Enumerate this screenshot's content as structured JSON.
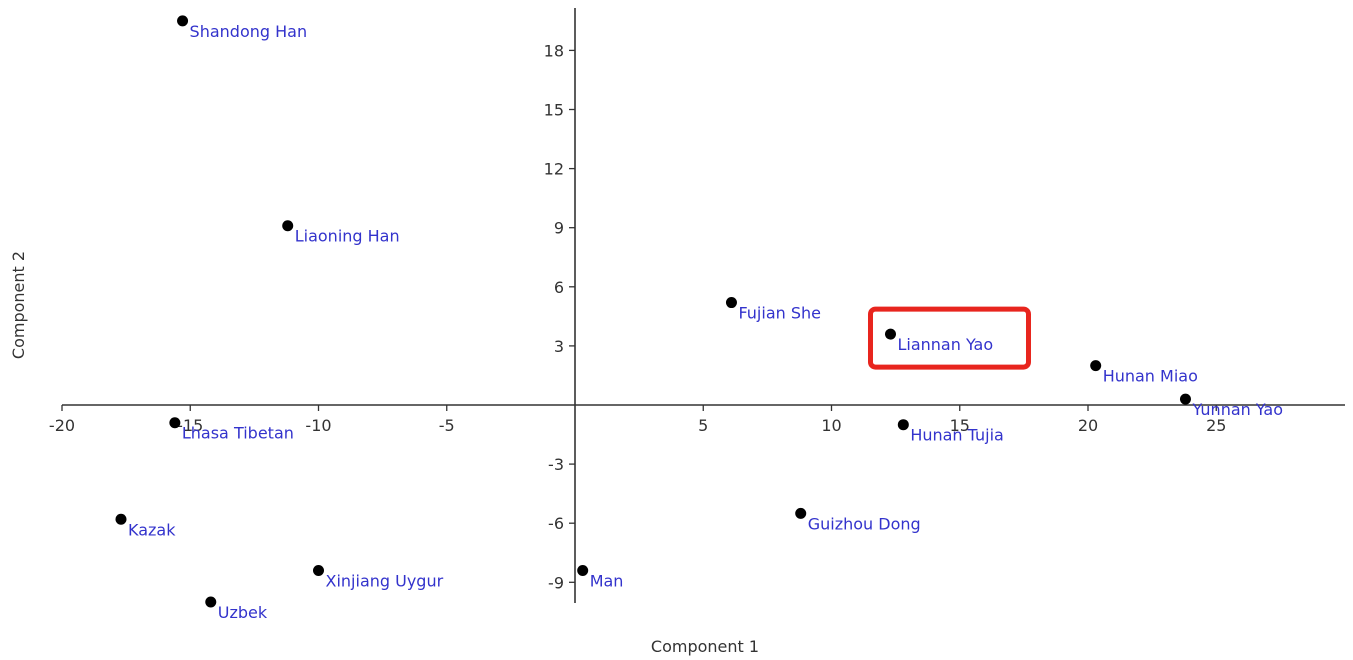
{
  "chart_data": {
    "type": "scatter",
    "xlabel": "Component 1",
    "ylabel": "Component 2",
    "xlim": [
      -20,
      30
    ],
    "ylim": [
      -10,
      20
    ],
    "x_ticks": [
      -20,
      -15,
      -10,
      -5,
      5,
      10,
      15,
      20,
      25
    ],
    "y_ticks": [
      -9,
      -6,
      -3,
      3,
      6,
      9,
      12,
      15,
      18
    ],
    "grid": false,
    "points": [
      {
        "label": "Shandong Han",
        "x": -15.3,
        "y": 19.5
      },
      {
        "label": "Liaoning Han",
        "x": -11.2,
        "y": 9.1
      },
      {
        "label": "Lhasa Tibetan",
        "x": -15.6,
        "y": -0.9
      },
      {
        "label": "Kazak",
        "x": -17.7,
        "y": -5.8
      },
      {
        "label": "Xinjiang Uygur",
        "x": -10.0,
        "y": -8.4
      },
      {
        "label": "Uzbek",
        "x": -14.2,
        "y": -10.0
      },
      {
        "label": "Man",
        "x": 0.3,
        "y": -8.4
      },
      {
        "label": "Fujian She",
        "x": 6.1,
        "y": 5.2
      },
      {
        "label": "Liannan Yao",
        "x": 12.3,
        "y": 3.6
      },
      {
        "label": "Hunan Tujia",
        "x": 12.8,
        "y": -1.0
      },
      {
        "label": "Guizhou Dong",
        "x": 8.8,
        "y": -5.5
      },
      {
        "label": "Hunan Miao",
        "x": 20.3,
        "y": 2.0
      },
      {
        "label": "Yunnan Yao",
        "x": 23.8,
        "y": 0.3
      }
    ],
    "highlighted": "Liannan Yao"
  },
  "colors": {
    "point": "#000000",
    "label": "#3333cc",
    "axis": "#333333",
    "highlight_box": "#e8251e"
  }
}
